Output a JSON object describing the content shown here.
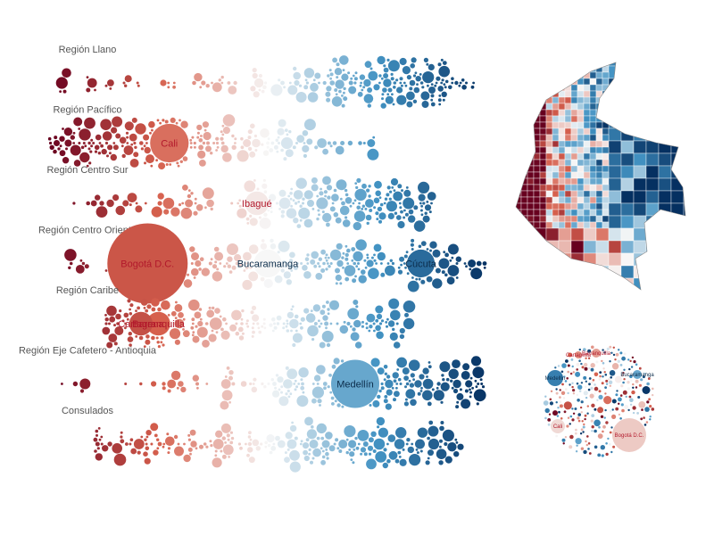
{
  "chart_data": [
    {
      "type": "scatter",
      "title": "",
      "xlabel": "",
      "ylabel": "",
      "color_scale": {
        "red_dark": "#67001f",
        "red": "#d6604d",
        "neutral": "#f7f7f7",
        "blue": "#4393c3",
        "blue_dark": "#053061"
      },
      "rows": [
        {
          "label": "Región Llano",
          "min": -0.95,
          "max": 0.95,
          "density": [
            0.2,
            0.15,
            0.1,
            0.15,
            0.2,
            0.3,
            0.5,
            0.8,
            1.0,
            0.9,
            0.5
          ],
          "labels": []
        },
        {
          "label": "Región Pacífico",
          "min": -1.0,
          "max": 0.5,
          "density": [
            0.6,
            0.9,
            1.0,
            0.9,
            0.8,
            0.6,
            0.4,
            0.3,
            0.3,
            0.25,
            0.2
          ],
          "labels": [
            {
              "text": "Cali",
              "x": -0.45,
              "size": 3.6
            }
          ]
        },
        {
          "label": "Región Centro Sur",
          "min": -0.9,
          "max": 0.75,
          "density": [
            0.2,
            0.2,
            0.25,
            0.3,
            0.4,
            0.6,
            0.9,
            1.0,
            0.9,
            0.6,
            0.3
          ],
          "labels": [
            {
              "text": "Ibagué",
              "x": -0.05,
              "size": 2.2
            }
          ]
        },
        {
          "label": "Región Centro Oriente",
          "min": -0.95,
          "max": 1.0,
          "density": [
            0.2,
            0.2,
            0.3,
            0.5,
            0.7,
            0.8,
            0.9,
            1.0,
            1.0,
            0.9,
            0.6
          ],
          "labels": [
            {
              "text": "Bogotá D.C.",
              "x": -0.55,
              "size": 7.5
            },
            {
              "text": "Bucaramanga",
              "x": 0.0,
              "size": 2.6
            },
            {
              "text": "Cúcuta",
              "x": 0.7,
              "size": 2.6
            }
          ]
        },
        {
          "label": "Región Caribe",
          "min": -0.75,
          "max": 0.65,
          "density": [
            0.5,
            0.8,
            1.0,
            1.0,
            0.9,
            0.9,
            0.8,
            0.7,
            0.6,
            0.4,
            0.2
          ],
          "labels": [
            {
              "text": "Barranquilla",
              "x": -0.5,
              "size": 2.2
            },
            {
              "text": "Cartagena",
              "x": -0.58,
              "size": 2.2
            }
          ]
        },
        {
          "label": "Región Eje Cafetero - Antioquia",
          "min": -0.95,
          "max": 1.0,
          "density": [
            0.1,
            0.1,
            0.15,
            0.2,
            0.3,
            0.5,
            0.7,
            0.9,
            1.0,
            1.0,
            0.8
          ],
          "labels": [
            {
              "text": "Medellín",
              "x": 0.4,
              "size": 4.5
            }
          ]
        },
        {
          "label": "Consulados",
          "min": -0.8,
          "max": 0.9,
          "density": [
            0.4,
            0.3,
            0.3,
            0.3,
            0.3,
            0.3,
            0.4,
            0.4,
            0.5,
            0.4,
            0.3
          ],
          "labels": []
        }
      ]
    },
    {
      "type": "heatmap",
      "title": "",
      "description_key": "choropleth-map-of-colombia",
      "labels": []
    },
    {
      "type": "scatter",
      "title": "",
      "description_key": "packed-circles",
      "labels": [
        "Barranquilla",
        "Cartagena",
        "Medellín",
        "Bucaramanga",
        "Cali",
        "Bogotá D.C."
      ]
    }
  ]
}
